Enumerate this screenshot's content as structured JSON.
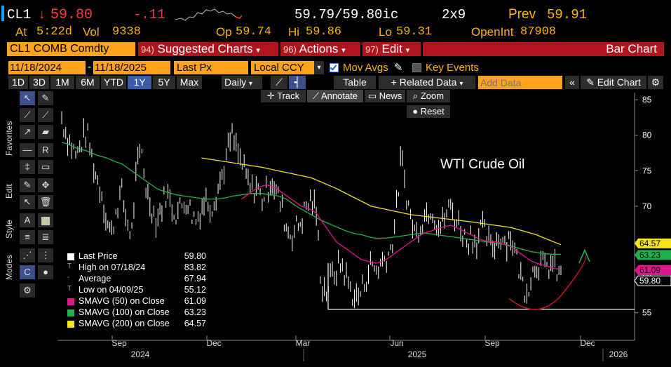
{
  "header": {
    "ticker": "CL1",
    "arrow": "↓",
    "last": "59.80",
    "change": "-.11",
    "bidask": "59.79/59.80ic",
    "size": "2x9",
    "prev_label": "Prev",
    "prev": "59.91",
    "at_label": "At",
    "time": "5:22d",
    "vol_label": "Vol",
    "vol": "9338",
    "op_label": "Op",
    "op": "59.74",
    "hi_label": "Hi",
    "hi": "59.86",
    "lo_label": "Lo",
    "lo": "59.31",
    "oi_label": "OpenInt",
    "oi": "87908"
  },
  "toolbar": {
    "security": "CL1 COMB Comdty",
    "suggested_num": "94)",
    "suggested": "Suggested Charts",
    "actions_num": "96)",
    "actions": "Actions",
    "edit_num": "97)",
    "edit": "Edit",
    "chart_type": "Bar Chart"
  },
  "controls": {
    "start_date": "11/18/2024",
    "end_date": "11/18/2025",
    "field": "Last Px",
    "currency": "Local CCY",
    "mov_avgs": "Mov Avgs",
    "key_events": "Key Events",
    "table": "Table",
    "related": "Related Data",
    "add_data_placeholder": "Add Data",
    "edit_chart": "Edit Chart",
    "ranges": [
      "1D",
      "3D",
      "1M",
      "6M",
      "YTD",
      "1Y",
      "5Y",
      "Max"
    ],
    "active_range": "1Y",
    "periodicity": "Daily",
    "track": "Track",
    "annotate": "Annotate",
    "news": "News",
    "zoom": "Zoom",
    "reset": "Reset"
  },
  "sidetabs": {
    "favorites": "Favorites",
    "edit": "Edit",
    "style": "Style",
    "modes": "Modes"
  },
  "legend": {
    "rows": [
      {
        "label": "Last Price",
        "value": "59.80",
        "color": "#ffffff"
      },
      {
        "label": "High on 07/18/24",
        "value": "83.82",
        "color": ""
      },
      {
        "label": "Average",
        "value": "67.94",
        "color": ""
      },
      {
        "label": "Low on 04/09/25",
        "value": "55.12",
        "color": ""
      },
      {
        "label": "SMAVG (50)  on Close",
        "value": "61.09",
        "color": "#e0168c"
      },
      {
        "label": "SMAVG (100)  on Close",
        "value": "63.23",
        "color": "#22b14c"
      },
      {
        "label": "SMAVG (200)  on Close",
        "value": "64.57",
        "color": "#f5e51b"
      }
    ]
  },
  "chart_data": {
    "type": "bar",
    "annotation": "WTI Crude Oil",
    "ylim": [
      52,
      86
    ],
    "yticks": [
      55,
      60,
      65,
      70,
      75,
      80,
      85
    ],
    "xticks": [
      "Sep",
      "Dec",
      "Mar",
      "Jun",
      "Sep",
      "Dec"
    ],
    "years": [
      "2024",
      "2025",
      "2026"
    ],
    "tags": [
      {
        "value": "64.57",
        "color": "#f5e51b"
      },
      {
        "value": "63.23",
        "color": "#22b14c"
      },
      {
        "value": "61.09",
        "color": "#e0168c"
      },
      {
        "value": "59.80",
        "color": "#ffffff"
      }
    ],
    "price_path": [
      82.5,
      80,
      78.5,
      77,
      79,
      80.5,
      77,
      74,
      72,
      68,
      66,
      70,
      72,
      68,
      66,
      75,
      78,
      72,
      70,
      68,
      70,
      72,
      70,
      69,
      70,
      71,
      69,
      68,
      70,
      71,
      70,
      72,
      74,
      77,
      80,
      78,
      76,
      74,
      72,
      73,
      71,
      72,
      74,
      72,
      70,
      67,
      66,
      67,
      68,
      70,
      71,
      69,
      59,
      58,
      60,
      61,
      62,
      60,
      58,
      57,
      58,
      60,
      62,
      61,
      62,
      63,
      64,
      69,
      77,
      72,
      68,
      66,
      68,
      69,
      70,
      68,
      67,
      69,
      70,
      68,
      67,
      65,
      66,
      65,
      67,
      66,
      64,
      65,
      66,
      65,
      66,
      63,
      60,
      58,
      60,
      62,
      62,
      61,
      62,
      61,
      60
    ],
    "sma50": [
      null,
      null,
      null,
      null,
      null,
      null,
      null,
      null,
      null,
      null,
      null,
      null,
      null,
      null,
      null,
      null,
      null,
      null,
      null,
      null,
      null,
      null,
      null,
      null,
      null,
      null,
      null,
      null,
      null,
      null,
      null,
      null,
      null,
      null,
      null,
      null,
      71,
      71.5,
      72,
      72.5,
      72.8,
      73,
      72.8,
      72.5,
      72,
      71.5,
      71,
      70.5,
      70,
      69.8,
      69.5,
      69,
      68,
      67,
      66,
      65,
      64.5,
      64,
      63.5,
      63,
      62.5,
      62.3,
      62.1,
      62,
      62.2,
      62.5,
      63,
      63.5,
      64,
      64.5,
      65,
      65.5,
      66,
      66.3,
      66.5,
      66.8,
      67,
      67.2,
      67.3,
      67,
      66.7,
      66.3,
      66,
      65.6,
      65.3,
      65.1,
      65,
      65,
      64.8,
      64.5,
      64.3,
      63.8,
      63.3,
      62.8,
      62.3,
      62,
      61.8,
      61.6,
      61.4,
      61.2,
      61.09
    ],
    "sma100": [
      79,
      78.8,
      78.5,
      78.2,
      78,
      77.8,
      77.5,
      77.2,
      77,
      76.8,
      76.5,
      76.2,
      76,
      75.5,
      75,
      74.5,
      74,
      73.5,
      73,
      72.5,
      72.2,
      72,
      71.8,
      71.6,
      71.5,
      71.4,
      71.3,
      71.2,
      71.1,
      71,
      71,
      71,
      71.1,
      71.2,
      71.4,
      71.5,
      71.6,
      71.7,
      71.8,
      71.8,
      71.8,
      71.7,
      71.6,
      71.5,
      71.3,
      71,
      70.5,
      70,
      69.6,
      69.2,
      68.8,
      68.4,
      68,
      67.7,
      67.4,
      67.1,
      66.8,
      66.5,
      66.3,
      66.1,
      66,
      65.8,
      65.6,
      65.5,
      65.5,
      65.5,
      65.6,
      65.7,
      65.8,
      65.9,
      66,
      66.1,
      66.2,
      66.2,
      66.1,
      66,
      65.9,
      65.8,
      65.7,
      65.6,
      65.5,
      65.4,
      65.3,
      65.2,
      65.1,
      65,
      64.9,
      64.8,
      64.7,
      64.6,
      64.4,
      64.2,
      64,
      63.8,
      63.6,
      63.5,
      63.4,
      63.3,
      63.25,
      63.23,
      63.23
    ],
    "sma200": [
      null,
      null,
      null,
      null,
      null,
      null,
      null,
      null,
      null,
      null,
      null,
      null,
      null,
      null,
      null,
      null,
      null,
      null,
      null,
      null,
      null,
      null,
      null,
      null,
      null,
      null,
      null,
      null,
      null,
      null,
      null,
      null,
      null,
      null,
      null,
      null,
      null,
      null,
      null,
      null,
      null,
      null,
      null,
      null,
      null,
      null,
      null,
      null,
      null,
      null,
      null,
      null,
      null,
      null,
      null,
      null,
      null,
      null,
      null,
      null,
      null,
      null,
      null,
      null,
      null,
      null,
      null,
      null,
      null,
      null,
      null,
      null,
      null,
      null,
      null,
      null,
      null,
      null,
      null,
      null,
      null,
      null,
      null,
      null,
      null,
      null,
      null,
      null,
      null,
      null,
      null,
      null,
      null,
      null,
      null,
      null,
      null,
      null,
      null,
      null,
      null
    ],
    "sma200_line": [
      [
        0.28,
        76.8
      ],
      [
        0.4,
        75.5
      ],
      [
        0.5,
        74
      ],
      [
        0.55,
        72.5
      ],
      [
        0.62,
        70
      ],
      [
        0.7,
        68.8
      ],
      [
        0.82,
        67.8
      ],
      [
        0.9,
        67
      ],
      [
        0.95,
        66
      ],
      [
        1.0,
        64.57
      ]
    ],
    "support_level": 55.5
  }
}
